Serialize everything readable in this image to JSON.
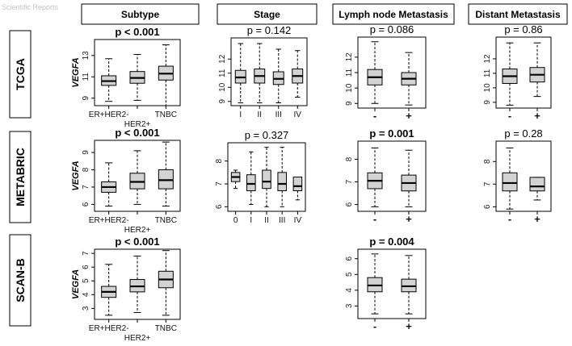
{
  "figure": {
    "column_headers": [
      "Subtype",
      "Stage",
      "Lymph node Metastasis",
      "Distant Metastasis"
    ],
    "row_labels": [
      "TCGA",
      "METABRIC",
      "SCAN-B"
    ],
    "y_label": "VEGFA",
    "watermark": "Scientific Reports"
  },
  "chart_data": [
    {
      "type": "box",
      "row": 0,
      "col": 0,
      "title": "p < 0.001",
      "p_value": "< 0.001",
      "p_bold": true,
      "ylabel": "VEGFA",
      "ylim": [
        8.3,
        14.5
      ],
      "yticks": [
        9,
        11,
        13
      ],
      "categories": [
        "ER+HER2-",
        "HER2+",
        "TNBC"
      ],
      "stagger_labels": true,
      "boxes": [
        {
          "whisker_low": 8.7,
          "q1": 10.2,
          "median": 10.6,
          "q3": 11.1,
          "whisker_high": 12.7
        },
        {
          "whisker_low": 8.8,
          "q1": 10.4,
          "median": 10.9,
          "q3": 11.5,
          "whisker_high": 13.1
        },
        {
          "whisker_low": 8.3,
          "q1": 10.7,
          "median": 11.3,
          "q3": 12.0,
          "whisker_high": 14.0
        }
      ]
    },
    {
      "type": "box",
      "row": 0,
      "col": 1,
      "title": "p = 0.142",
      "p_value": "0.142",
      "p_bold": false,
      "ylabel": "",
      "ylim": [
        8.7,
        13.5
      ],
      "yticks": [
        9,
        10,
        11,
        12
      ],
      "categories": [
        "I",
        "II",
        "III",
        "IV"
      ],
      "stagger_labels": false,
      "boxes": [
        {
          "whisker_low": 8.9,
          "q1": 10.3,
          "median": 10.7,
          "q3": 11.2,
          "whisker_high": 13.1
        },
        {
          "whisker_low": 8.9,
          "q1": 10.3,
          "median": 10.8,
          "q3": 11.3,
          "whisker_high": 13.1
        },
        {
          "whisker_low": 8.9,
          "q1": 10.2,
          "median": 10.6,
          "q3": 11.1,
          "whisker_high": 12.7
        },
        {
          "whisker_low": 9.3,
          "q1": 10.3,
          "median": 10.8,
          "q3": 11.3,
          "whisker_high": 12.6
        }
      ]
    },
    {
      "type": "box",
      "row": 0,
      "col": 2,
      "title": "p = 0.086",
      "p_value": "0.086",
      "p_bold": false,
      "ylabel": "",
      "ylim": [
        8.7,
        13.3
      ],
      "yticks": [
        9,
        10,
        11,
        12
      ],
      "categories": [
        "-",
        "+"
      ],
      "stagger_labels": false,
      "big_labels": true,
      "boxes": [
        {
          "whisker_low": 9.0,
          "q1": 10.2,
          "median": 10.7,
          "q3": 11.2,
          "whisker_high": 13.0
        },
        {
          "whisker_low": 8.9,
          "q1": 10.2,
          "median": 10.6,
          "q3": 11.0,
          "whisker_high": 12.3
        }
      ]
    },
    {
      "type": "box",
      "row": 0,
      "col": 3,
      "title": "p = 0.86",
      "p_value": "0.86",
      "p_bold": false,
      "ylabel": "",
      "ylim": [
        8.6,
        13.5
      ],
      "yticks": [
        9,
        10,
        11,
        12
      ],
      "categories": [
        "-",
        "+"
      ],
      "stagger_labels": false,
      "big_labels": true,
      "boxes": [
        {
          "whisker_low": 8.8,
          "q1": 10.3,
          "median": 10.8,
          "q3": 11.3,
          "whisker_high": 13.1
        },
        {
          "whisker_low": 9.4,
          "q1": 10.4,
          "median": 10.9,
          "q3": 11.4,
          "whisker_high": 13.1
        }
      ]
    },
    {
      "type": "box",
      "row": 1,
      "col": 0,
      "title": "p < 0.001",
      "p_value": "< 0.001",
      "p_bold": true,
      "ylabel": "VEGFA",
      "ylim": [
        5.6,
        9.7
      ],
      "yticks": [
        6,
        7,
        8,
        9
      ],
      "categories": [
        "ER+HER2-",
        "HER2+",
        "TNBC"
      ],
      "stagger_labels": true,
      "boxes": [
        {
          "whisker_low": 5.9,
          "q1": 6.7,
          "median": 7.0,
          "q3": 7.3,
          "whisker_high": 8.4
        },
        {
          "whisker_low": 6.0,
          "q1": 6.9,
          "median": 7.3,
          "q3": 7.8,
          "whisker_high": 9.1
        },
        {
          "whisker_low": 5.9,
          "q1": 6.9,
          "median": 7.4,
          "q3": 8.0,
          "whisker_high": 9.6
        }
      ]
    },
    {
      "type": "box",
      "row": 1,
      "col": 1,
      "title": "p = 0.327",
      "p_value": "0.327",
      "p_bold": false,
      "ylabel": "",
      "ylim": [
        5.8,
        8.8
      ],
      "yticks": [
        6.0,
        7.0,
        8.0
      ],
      "categories": [
        "0",
        "I",
        "II",
        "III",
        "IV"
      ],
      "stagger_labels": false,
      "boxes": [
        {
          "whisker_low": 6.8,
          "q1": 7.1,
          "median": 7.3,
          "q3": 7.5,
          "whisker_high": 7.6
        },
        {
          "whisker_low": 6.1,
          "q1": 6.7,
          "median": 7.0,
          "q3": 7.4,
          "whisker_high": 8.4
        },
        {
          "whisker_low": 6.0,
          "q1": 6.8,
          "median": 7.1,
          "q3": 7.6,
          "whisker_high": 8.6
        },
        {
          "whisker_low": 6.0,
          "q1": 6.7,
          "median": 7.0,
          "q3": 7.5,
          "whisker_high": 8.6
        },
        {
          "whisker_low": 6.3,
          "q1": 6.7,
          "median": 6.9,
          "q3": 7.3,
          "whisker_high": 7.3
        }
      ]
    },
    {
      "type": "box",
      "row": 1,
      "col": 2,
      "title": "p = 0.001",
      "p_value": "0.001",
      "p_bold": true,
      "ylabel": "",
      "ylim": [
        5.7,
        8.8
      ],
      "yticks": [
        6.0,
        7.0,
        8.0
      ],
      "categories": [
        "-",
        "+"
      ],
      "stagger_labels": false,
      "big_labels": true,
      "boxes": [
        {
          "whisker_low": 5.9,
          "q1": 6.7,
          "median": 7.05,
          "q3": 7.4,
          "whisker_high": 8.5
        },
        {
          "whisker_low": 5.9,
          "q1": 6.6,
          "median": 6.95,
          "q3": 7.3,
          "whisker_high": 8.4
        }
      ]
    },
    {
      "type": "box",
      "row": 1,
      "col": 3,
      "title": "p = 0.28",
      "p_value": "0.28",
      "p_bold": false,
      "ylabel": "",
      "ylim": [
        5.8,
        8.9
      ],
      "yticks": [
        6.0,
        7.0,
        8.0
      ],
      "categories": [
        "-",
        "+"
      ],
      "stagger_labels": false,
      "big_labels": true,
      "boxes": [
        {
          "whisker_low": 5.9,
          "q1": 6.7,
          "median": 7.05,
          "q3": 7.5,
          "whisker_high": 8.6
        },
        {
          "whisker_low": 6.3,
          "q1": 6.7,
          "median": 6.9,
          "q3": 7.3,
          "whisker_high": 7.3
        }
      ]
    },
    {
      "type": "box",
      "row": 2,
      "col": 0,
      "title": "p < 0.001",
      "p_value": "< 0.001",
      "p_bold": true,
      "ylabel": "VEGFA",
      "ylim": [
        2.2,
        7.3
      ],
      "yticks": [
        3,
        4,
        5,
        6,
        7
      ],
      "categories": [
        "ER+HER2-",
        "HER2+",
        "TNBC"
      ],
      "stagger_labels": true,
      "boxes": [
        {
          "whisker_low": 2.5,
          "q1": 3.8,
          "median": 4.2,
          "q3": 4.6,
          "whisker_high": 6.2
        },
        {
          "whisker_low": 2.7,
          "q1": 4.2,
          "median": 4.6,
          "q3": 5.1,
          "whisker_high": 6.8
        },
        {
          "whisker_low": 2.5,
          "q1": 4.5,
          "median": 5.1,
          "q3": 5.7,
          "whisker_high": 7.2
        }
      ]
    },
    {
      "type": "box",
      "row": 2,
      "col": 2,
      "title": "p = 0.004",
      "p_value": "0.004",
      "p_bold": true,
      "ylabel": "",
      "ylim": [
        2.2,
        6.6
      ],
      "yticks": [
        3,
        4,
        5,
        6
      ],
      "categories": [
        "-",
        "+"
      ],
      "stagger_labels": false,
      "big_labels": true,
      "boxes": [
        {
          "whisker_low": 2.5,
          "q1": 3.9,
          "median": 4.3,
          "q3": 4.8,
          "whisker_high": 6.3
        },
        {
          "whisker_low": 2.5,
          "q1": 3.9,
          "median": 4.25,
          "q3": 4.7,
          "whisker_high": 6.2
        }
      ]
    }
  ]
}
